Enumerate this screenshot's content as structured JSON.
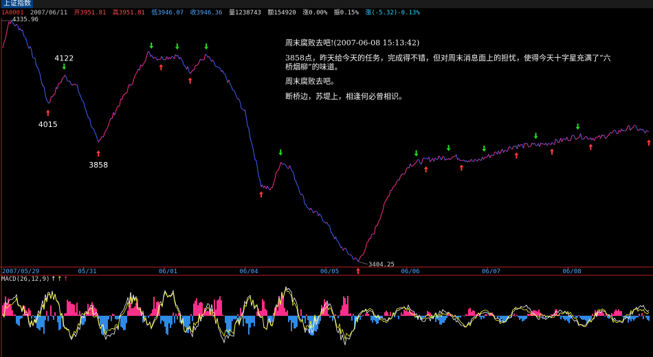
{
  "header": {
    "index_name": "上证指数",
    "quote": {
      "code": "1A0001",
      "date": "2007/06/11",
      "open": "开3951.81",
      "high": "高3951.81",
      "low": "低3946.07",
      "close": "收3946.36",
      "volume": "量1238743",
      "amount": "额154920",
      "change_pct": "涨0.00%",
      "amplitude": "振0.15%",
      "rise": "涨(-5.32)-0.13%"
    }
  },
  "note": {
    "title": "周末腐败去吧!(2007-06-08 15:13:42)",
    "body": "3858点，昨天给今天的任务，完成得不错，但对周末消息面上的担忧，使得今天十字星充满了“六桥烟柳”的味道。",
    "line2": "周末腐败去吧。",
    "line3": "断桥边，苏堤上，相逢何必曾相识。"
  },
  "chart_data": {
    "type": "line",
    "series_name": "上证指数",
    "x": [
      "2007/05/29",
      "05/31",
      "06/01",
      "06/04",
      "06/05",
      "06/06",
      "06/07",
      "06/08"
    ],
    "date_labels": [
      "2007/05/29",
      "05/31",
      "06/01",
      "06/04",
      "06/05",
      "06/06",
      "06/07",
      "06/08"
    ],
    "max_label": "4335.96",
    "min_label": "3404.25",
    "ylim": [
      3404.25,
      4335.96
    ],
    "anchors": [
      [
        0.0,
        4230
      ],
      [
        0.01,
        4336
      ],
      [
        0.03,
        4300
      ],
      [
        0.055,
        4150
      ],
      [
        0.07,
        4015
      ],
      [
        0.095,
        4122
      ],
      [
        0.115,
        4080
      ],
      [
        0.135,
        3950
      ],
      [
        0.148,
        3858
      ],
      [
        0.175,
        3990
      ],
      [
        0.205,
        4120
      ],
      [
        0.225,
        4210
      ],
      [
        0.24,
        4190
      ],
      [
        0.27,
        4200
      ],
      [
        0.29,
        4140
      ],
      [
        0.315,
        4200
      ],
      [
        0.345,
        4120
      ],
      [
        0.375,
        3980
      ],
      [
        0.4,
        3700
      ],
      [
        0.415,
        3680
      ],
      [
        0.43,
        3790
      ],
      [
        0.445,
        3770
      ],
      [
        0.47,
        3620
      ],
      [
        0.5,
        3560
      ],
      [
        0.52,
        3470
      ],
      [
        0.55,
        3404
      ],
      [
        0.575,
        3520
      ],
      [
        0.6,
        3680
      ],
      [
        0.63,
        3780
      ],
      [
        0.66,
        3800
      ],
      [
        0.7,
        3810
      ],
      [
        0.73,
        3790
      ],
      [
        0.76,
        3820
      ],
      [
        0.79,
        3850
      ],
      [
        0.83,
        3855
      ],
      [
        0.86,
        3870
      ],
      [
        0.89,
        3890
      ],
      [
        0.92,
        3880
      ],
      [
        0.95,
        3905
      ],
      [
        0.975,
        3925
      ],
      [
        1.0,
        3900
      ]
    ],
    "peak_labels": [
      {
        "value": "4122",
        "at": 0.095
      },
      {
        "value": "4015",
        "at": 0.07
      },
      {
        "value": "3858",
        "at": 0.148
      }
    ],
    "markers": {
      "down": [
        0.095,
        0.23,
        0.27,
        0.315,
        0.43,
        0.64,
        0.69,
        0.745,
        0.825,
        0.89
      ],
      "up": [
        0.07,
        0.148,
        0.245,
        0.29,
        0.4,
        0.55,
        0.655,
        0.71,
        0.795,
        0.85,
        0.91,
        1.0
      ]
    },
    "macd": {
      "label": "MACD(26,12,9)",
      "legend_arrows": [
        "↑",
        "↑",
        "↑"
      ]
    }
  },
  "colors": {
    "price_line": "#4060ff",
    "price_line_up": "#ff2e8a",
    "macd_pos": "#ff2e8a",
    "macd_neg": "#2f8ae6",
    "macd_line": "#ffffff",
    "signal_line": "#ffff33",
    "up_arrow": "#ff3b3b",
    "down_arrow": "#22dd22",
    "axis": "#c02020",
    "date_label": "#4aa8ff"
  }
}
